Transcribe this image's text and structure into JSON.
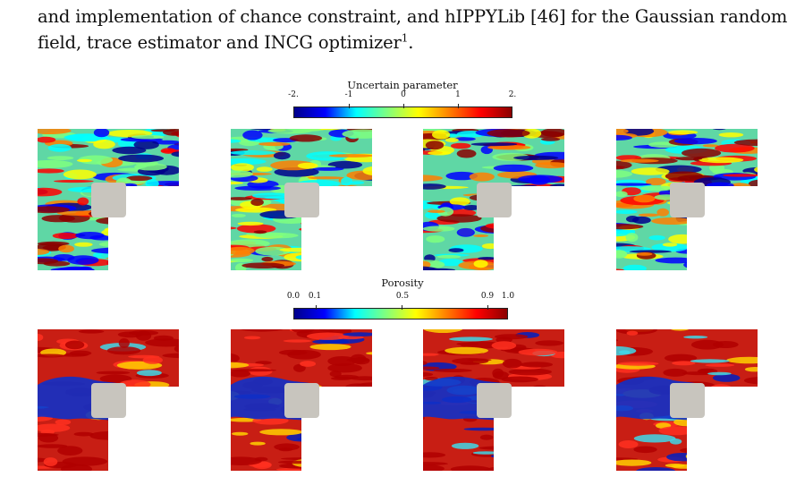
{
  "text": {
    "line1": "and implementation of chance constraint, and hIPPYLib [46] for the Gaussian random",
    "line2": "field, trace estimator and INCG optimizer",
    "footnote_mark": "1",
    "line2_end": "."
  },
  "colorbar_top": {
    "title": "Uncertain parameter",
    "ticks": [
      "-2.",
      "-1",
      "0",
      "1",
      "2."
    ]
  },
  "colorbar_bottom": {
    "title": "Porosity",
    "ticks": [
      "0.0",
      "0.1",
      "0.5",
      "0.9",
      "1.0"
    ]
  },
  "colors": {
    "colormap": [
      "#00008b",
      "#0000ff",
      "#00ffff",
      "#7fff7f",
      "#ffff00",
      "#ff7f00",
      "#ff0000",
      "#8b0000"
    ],
    "obstacle": "#c8c5be"
  },
  "panels": {
    "uncertain": [
      "sample-1",
      "sample-2",
      "sample-3",
      "sample-4"
    ],
    "porosity": [
      "design-1",
      "design-2",
      "design-3",
      "design-4"
    ]
  }
}
